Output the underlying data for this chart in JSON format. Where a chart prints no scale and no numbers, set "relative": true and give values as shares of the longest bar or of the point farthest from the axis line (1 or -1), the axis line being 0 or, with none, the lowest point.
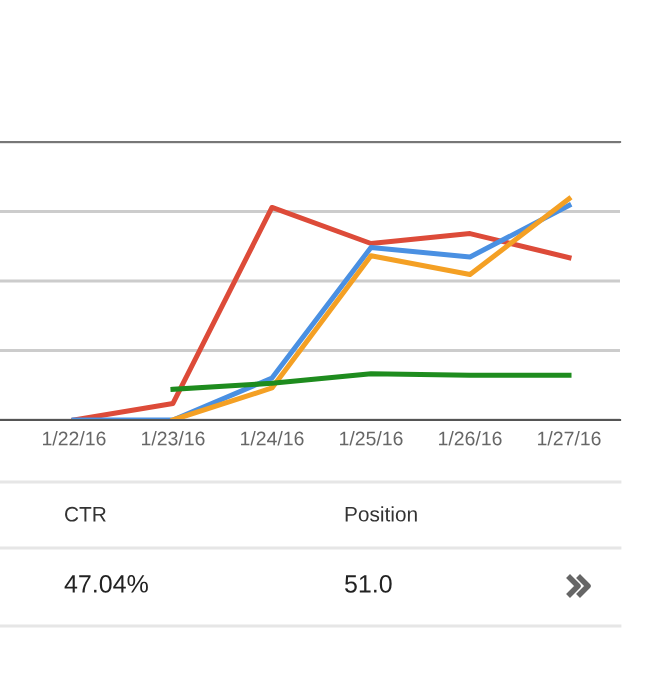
{
  "chart_data": {
    "type": "line",
    "relative": true,
    "grid": "y",
    "legend": false,
    "categories": [
      "1/22/16",
      "1/23/16",
      "1/24/16",
      "1/25/16",
      "1/26/16",
      "1/27/16"
    ],
    "series": [
      {
        "color": "#dd4b39",
        "values": [
          0,
          0.075,
          0.961,
          0.798,
          0.843,
          0.734
        ]
      },
      {
        "color": "#4a90e2",
        "values": [
          0,
          0,
          0.19,
          0.78,
          0.737,
          0.97
        ]
      },
      {
        "color": "#f4a024",
        "values": [
          null,
          0,
          0.145,
          0.743,
          0.658,
          1
        ]
      },
      {
        "color": "#1e8c1e",
        "values": [
          null,
          0.139,
          0.166,
          0.209,
          0.202,
          0.202
        ]
      }
    ],
    "annotations": [
      "CTR",
      "Position",
      "47.04%",
      "51.0"
    ]
  }
}
